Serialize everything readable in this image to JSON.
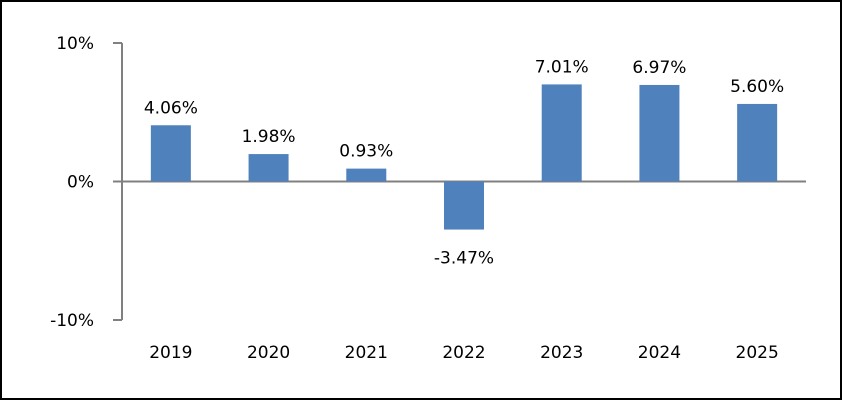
{
  "chart_data": {
    "type": "bar",
    "categories": [
      "2019",
      "2020",
      "2021",
      "2022",
      "2023",
      "2024",
      "2025"
    ],
    "values": [
      4.06,
      1.98,
      0.93,
      -3.47,
      7.01,
      6.97,
      5.6
    ],
    "data_labels": [
      "4.06%",
      "1.98%",
      "0.93%",
      "-3.47%",
      "7.01%",
      "6.97%",
      "5.60%"
    ],
    "y_ticks": [
      {
        "value": 10,
        "label": "10%"
      },
      {
        "value": 0,
        "label": "0%"
      },
      {
        "value": -10,
        "label": "-10%"
      }
    ],
    "ylim": [
      -10,
      10
    ],
    "title": "",
    "xlabel": "",
    "ylabel": "",
    "grid": false,
    "legend": "none",
    "bar_color": "#4F81BD",
    "axis_color": "#808080"
  }
}
